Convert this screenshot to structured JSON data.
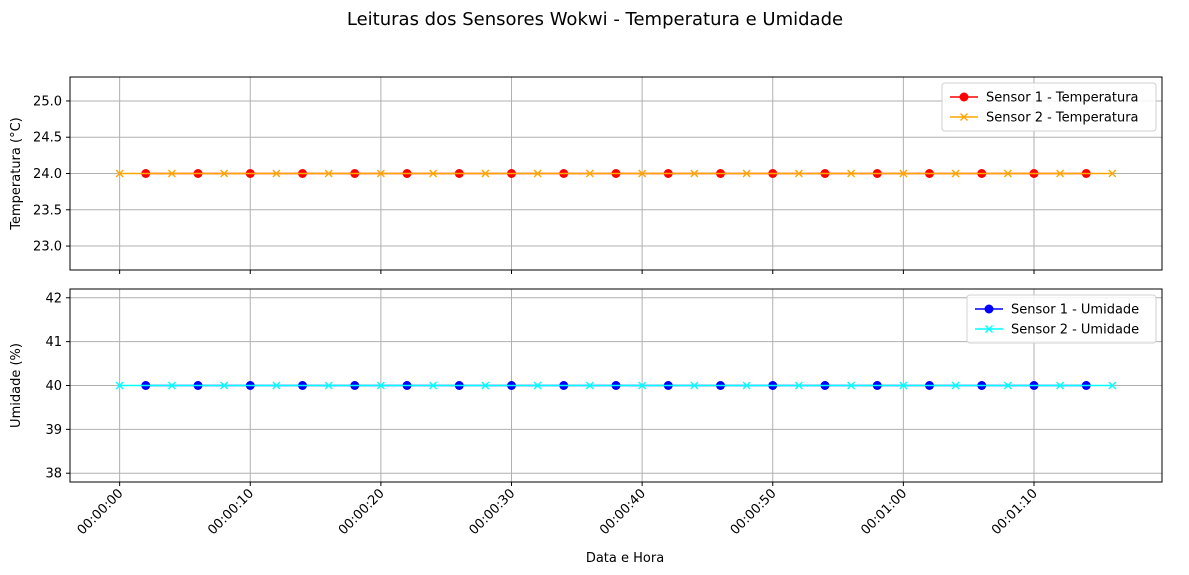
{
  "title": "Leituras dos Sensores Wokwi - Temperatura e Umidade",
  "xlabel": "Data e Hora",
  "chart_data": [
    {
      "type": "line",
      "ylabel": "Temperatura (°C)",
      "ylim": [
        22.67,
        25.33
      ],
      "yticks": [
        "23.0",
        "23.5",
        "24.0",
        "24.5",
        "25.0"
      ],
      "ytick_values": [
        23.0,
        23.5,
        24.0,
        24.5,
        25.0
      ],
      "grid": true,
      "legend_position": "top-right",
      "series": [
        {
          "name": "Sensor 1 - Temperatura",
          "color": "#ff0000",
          "marker": "circle",
          "x": [
            2,
            6,
            10,
            14,
            18,
            22,
            26,
            30,
            34,
            38,
            42,
            46,
            50,
            54,
            58,
            62,
            66,
            70,
            74
          ],
          "y": [
            24,
            24,
            24,
            24,
            24,
            24,
            24,
            24,
            24,
            24,
            24,
            24,
            24,
            24,
            24,
            24,
            24,
            24,
            24
          ]
        },
        {
          "name": "Sensor 2 - Temperatura",
          "color": "#ffa500",
          "marker": "x",
          "x": [
            0,
            4,
            8,
            12,
            16,
            20,
            24,
            28,
            32,
            36,
            40,
            44,
            48,
            52,
            56,
            60,
            64,
            68,
            72,
            76
          ],
          "y": [
            24,
            24,
            24,
            24,
            24,
            24,
            24,
            24,
            24,
            24,
            24,
            24,
            24,
            24,
            24,
            24,
            24,
            24,
            24,
            24
          ]
        }
      ]
    },
    {
      "type": "line",
      "ylabel": "Umidade (%)",
      "ylim": [
        37.8,
        42.2
      ],
      "yticks": [
        "38",
        "39",
        "40",
        "41",
        "42"
      ],
      "ytick_values": [
        38,
        39,
        40,
        41,
        42
      ],
      "grid": true,
      "legend_position": "top-right",
      "series": [
        {
          "name": "Sensor 1 - Umidade",
          "color": "#0000ff",
          "marker": "circle",
          "x": [
            2,
            6,
            10,
            14,
            18,
            22,
            26,
            30,
            34,
            38,
            42,
            46,
            50,
            54,
            58,
            62,
            66,
            70,
            74
          ],
          "y": [
            40,
            40,
            40,
            40,
            40,
            40,
            40,
            40,
            40,
            40,
            40,
            40,
            40,
            40,
            40,
            40,
            40,
            40,
            40
          ]
        },
        {
          "name": "Sensor 2 - Umidade",
          "color": "#00ffff",
          "marker": "x",
          "x": [
            0,
            4,
            8,
            12,
            16,
            20,
            24,
            28,
            32,
            36,
            40,
            44,
            48,
            52,
            56,
            60,
            64,
            68,
            72,
            76
          ],
          "y": [
            40,
            40,
            40,
            40,
            40,
            40,
            40,
            40,
            40,
            40,
            40,
            40,
            40,
            40,
            40,
            40,
            40,
            40,
            40,
            40
          ]
        }
      ]
    }
  ],
  "xaxis": {
    "xlim": [
      -3.8,
      79.8
    ],
    "tick_values": [
      0,
      10,
      20,
      30,
      40,
      50,
      60,
      70
    ],
    "tick_labels": [
      "00:00:00",
      "00:00:10",
      "00:00:20",
      "00:00:30",
      "00:00:40",
      "00:00:50",
      "00:01:00",
      "00:01:10"
    ]
  }
}
